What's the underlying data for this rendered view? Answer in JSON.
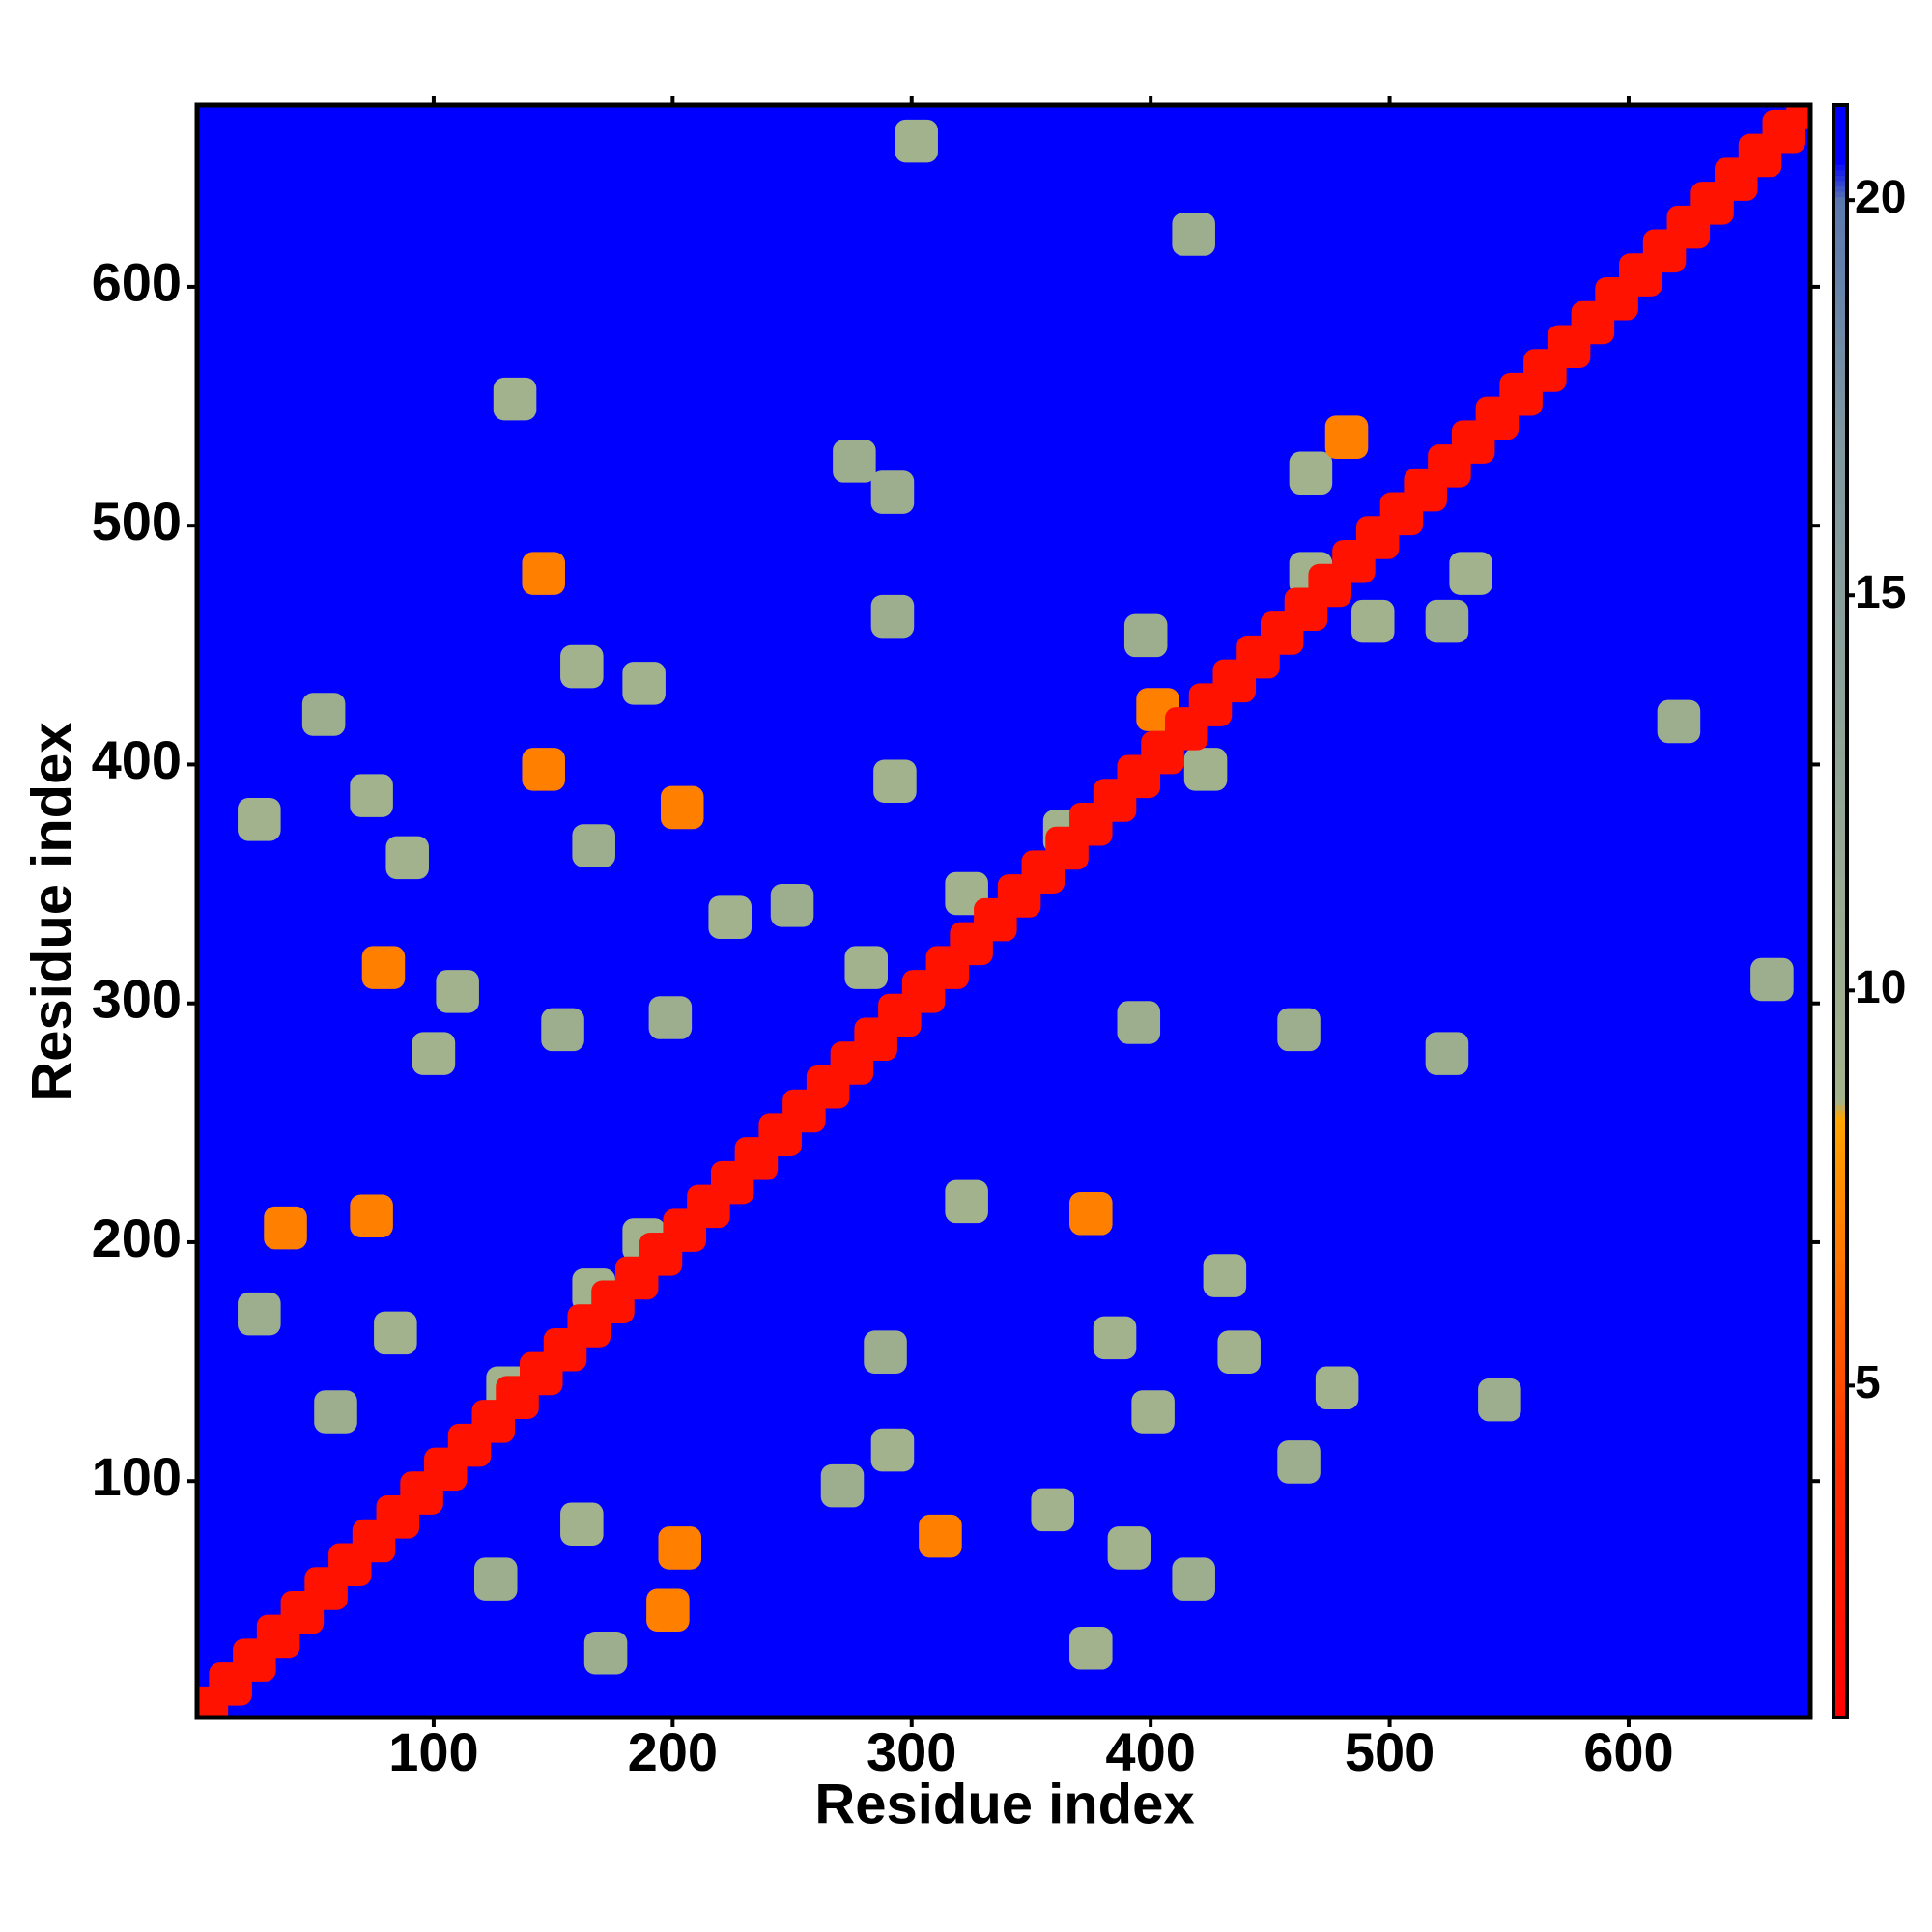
{
  "chart_data": {
    "type": "heatmap",
    "x_label": "Residue index",
    "y_label": "Residue index",
    "xlim": [
      1,
      676
    ],
    "ylim": [
      1,
      676
    ],
    "xticks": [
      100,
      200,
      300,
      400,
      500,
      600
    ],
    "yticks": [
      100,
      200,
      300,
      400,
      500,
      600
    ],
    "clim": [
      0.8,
      21.2
    ],
    "cticks": [
      5,
      10,
      15,
      20
    ],
    "colormap": [
      {
        "value": 0.8,
        "color": "#ff0000"
      },
      {
        "value": 4,
        "color": "#ff3000"
      },
      {
        "value": 8.4,
        "color": "#ffa500"
      },
      {
        "value": 8.6,
        "color": "#a3b38c"
      },
      {
        "value": 17,
        "color": "#7f97a0"
      },
      {
        "value": 20,
        "color": "#5a78ae"
      },
      {
        "value": 20.5,
        "color": "#0000ff"
      },
      {
        "value": 21.2,
        "color": "#0000ff"
      }
    ],
    "x": [
      302,
      418,
      134,
      276,
      146,
      162,
      188,
      54,
      27,
      74,
      146,
      204,
      89,
      167,
      79,
      110,
      100,
      154,
      224,
      250,
      292,
      292,
      293,
      199,
      281,
      323,
      38,
      74,
      84,
      27,
      131,
      167,
      188,
      289,
      292,
      312,
      271,
      162,
      203,
      198,
      172,
      126,
      59,
      323,
      375,
      385,
      401,
      359,
      391,
      375,
      418,
      431,
      437,
      478,
      462,
      546,
      395,
      462,
      524,
      621,
      660,
      398,
      403,
      423,
      364,
      467,
      482,
      467,
      493,
      534,
      524,
      5,
      15,
      25,
      35,
      45,
      55,
      65,
      75,
      85,
      95,
      105,
      115,
      125,
      135,
      145,
      155,
      165,
      175,
      185,
      195,
      205,
      215,
      225,
      235,
      245,
      255,
      265,
      275,
      285,
      295,
      305,
      315,
      325,
      335,
      345,
      355,
      365,
      375,
      385,
      395,
      405,
      415,
      425,
      435,
      445,
      455,
      465,
      475,
      485,
      495,
      505,
      515,
      525,
      535,
      545,
      555,
      565,
      575,
      585,
      595,
      605,
      615,
      625,
      635,
      645,
      655,
      665,
      675
    ],
    "y": [
      661,
      622,
      553,
      527,
      480,
      441,
      434,
      421,
      377,
      387,
      398,
      382,
      361,
      366,
      315,
      305,
      279,
      289,
      336,
      341,
      514,
      462,
      393,
      294,
      315,
      346,
      206,
      211,
      162,
      170,
      139,
      180,
      201,
      154,
      113,
      77,
      98,
      82,
      72,
      46,
      28,
      59,
      129,
      217,
      212,
      160,
      129,
      88,
      72,
      30,
      59,
      186,
      154,
      139,
      108,
      134,
      292,
      289,
      279,
      418,
      310,
      454,
      423,
      398,
      372,
      522,
      537,
      480,
      460,
      480,
      460,
      5,
      15,
      25,
      35,
      45,
      55,
      65,
      75,
      85,
      95,
      105,
      115,
      125,
      135,
      145,
      155,
      165,
      175,
      185,
      195,
      205,
      215,
      225,
      235,
      245,
      255,
      265,
      275,
      285,
      295,
      305,
      315,
      325,
      335,
      345,
      355,
      365,
      375,
      385,
      395,
      405,
      415,
      425,
      435,
      445,
      455,
      465,
      475,
      485,
      495,
      505,
      515,
      525,
      535,
      545,
      555,
      565,
      575,
      585,
      595,
      605,
      615,
      625,
      635,
      645,
      655,
      665,
      675
    ],
    "values": [
      9,
      10,
      9,
      10,
      7,
      9,
      9,
      10,
      9,
      9,
      7,
      7,
      9,
      10,
      7,
      9,
      9,
      10,
      9,
      10,
      10,
      10,
      9,
      10,
      9,
      9,
      7,
      7,
      9,
      10,
      9,
      9,
      9,
      10,
      9,
      7,
      10,
      9,
      7,
      7,
      10,
      10,
      10,
      9,
      7,
      9,
      9,
      9,
      9,
      9,
      10,
      9,
      9,
      9,
      10,
      10,
      10,
      10,
      10,
      10,
      10,
      10,
      7,
      9,
      9,
      9,
      7,
      9,
      9,
      9,
      10,
      2,
      2,
      2,
      2,
      2,
      2,
      2,
      2,
      2,
      2,
      2,
      2,
      2,
      2,
      2,
      2,
      2,
      2,
      2,
      2,
      2,
      2,
      2,
      2,
      2,
      2,
      2,
      2,
      2,
      2,
      2,
      2,
      2,
      2,
      2,
      2,
      2,
      2,
      2,
      2,
      2,
      2,
      2,
      2,
      2,
      2,
      2,
      2,
      2,
      2,
      2,
      2,
      2,
      2,
      2,
      2,
      2,
      2,
      2,
      2,
      2,
      2,
      2,
      2,
      2,
      2,
      2,
      2
    ]
  }
}
